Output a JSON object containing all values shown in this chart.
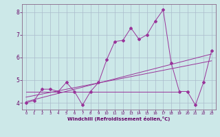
{
  "xlabel": "Windchill (Refroidissement éolien,°C)",
  "background_color": "#cce8e8",
  "grid_color": "#aabbcc",
  "line_color": "#993399",
  "x_min": 0,
  "x_max": 23,
  "y_min": 3.7,
  "y_max": 8.35,
  "main_data": [
    [
      0,
      4.0
    ],
    [
      1,
      4.1
    ],
    [
      2,
      4.6
    ],
    [
      3,
      4.6
    ],
    [
      4,
      4.5
    ],
    [
      5,
      4.9
    ],
    [
      6,
      4.5
    ],
    [
      7,
      3.9
    ],
    [
      8,
      4.5
    ],
    [
      9,
      4.9
    ],
    [
      10,
      5.9
    ],
    [
      11,
      6.7
    ],
    [
      12,
      6.75
    ],
    [
      13,
      7.3
    ],
    [
      14,
      6.8
    ],
    [
      15,
      7.0
    ],
    [
      16,
      7.6
    ],
    [
      17,
      8.1
    ],
    [
      18,
      5.75
    ],
    [
      19,
      4.5
    ],
    [
      20,
      4.5
    ],
    [
      21,
      3.9
    ],
    [
      22,
      4.9
    ],
    [
      23,
      6.3
    ]
  ],
  "flat_line": [
    [
      0,
      4.5
    ],
    [
      19,
      4.5
    ]
  ],
  "trend_line1": [
    [
      0,
      4.05
    ],
    [
      23,
      6.15
    ]
  ],
  "trend_line2": [
    [
      0,
      4.25
    ],
    [
      23,
      5.85
    ]
  ],
  "yticks": [
    4,
    5,
    6,
    7,
    8
  ],
  "y_tick_labels": [
    "4",
    "5",
    "6",
    "7",
    "8"
  ]
}
